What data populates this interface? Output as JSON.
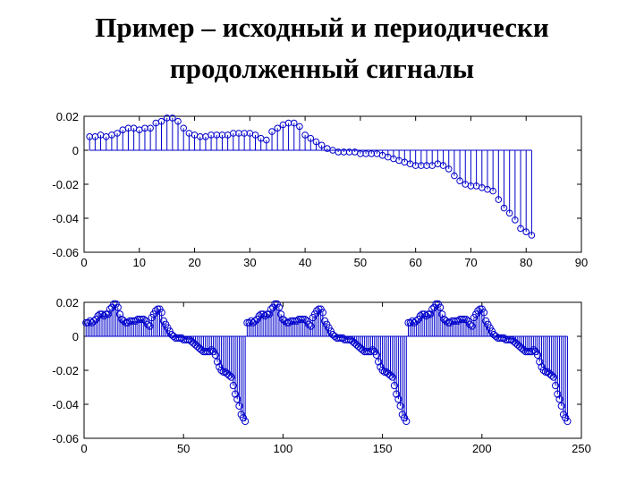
{
  "title_lines": [
    "Пример – исходный и периодически",
    "продолженный сигналы"
  ],
  "colors": {
    "stem": "#0000cc",
    "axis": "#000000",
    "background": "#ffffff"
  },
  "chart_data": [
    {
      "type": "stem",
      "xlim": [
        0,
        90
      ],
      "ylim": [
        -0.06,
        0.02
      ],
      "xticks": [
        0,
        10,
        20,
        30,
        40,
        50,
        60,
        70,
        80,
        90
      ],
      "yticks": [
        0.02,
        0,
        -0.02,
        -0.04,
        -0.06
      ],
      "xtick_labels": [
        "0",
        "10",
        "20",
        "30",
        "40",
        "50",
        "60",
        "70",
        "80",
        "90"
      ],
      "ytick_labels": [
        "0.02",
        "0",
        "-0.02",
        "-0.04",
        "-0.06"
      ],
      "x": [
        1,
        2,
        3,
        4,
        5,
        6,
        7,
        8,
        9,
        10,
        11,
        12,
        13,
        14,
        15,
        16,
        17,
        18,
        19,
        20,
        21,
        22,
        23,
        24,
        25,
        26,
        27,
        28,
        29,
        30,
        31,
        32,
        33,
        34,
        35,
        36,
        37,
        38,
        39,
        40,
        41,
        42,
        43,
        44,
        45,
        46,
        47,
        48,
        49,
        50,
        51,
        52,
        53,
        54,
        55,
        56,
        57,
        58,
        59,
        60,
        61,
        62,
        63,
        64,
        65,
        66,
        67,
        68,
        69,
        70,
        71,
        72,
        73,
        74,
        75,
        76,
        77,
        78,
        79,
        80,
        81
      ],
      "y": [
        0.008,
        0.008,
        0.009,
        0.008,
        0.009,
        0.01,
        0.012,
        0.013,
        0.013,
        0.012,
        0.013,
        0.013,
        0.016,
        0.017,
        0.019,
        0.019,
        0.017,
        0.013,
        0.01,
        0.009,
        0.008,
        0.008,
        0.009,
        0.009,
        0.009,
        0.009,
        0.01,
        0.01,
        0.01,
        0.01,
        0.009,
        0.007,
        0.006,
        0.011,
        0.013,
        0.015,
        0.016,
        0.016,
        0.014,
        0.009,
        0.007,
        0.005,
        0.003,
        0.001,
        0.0,
        -0.001,
        -0.001,
        -0.001,
        -0.001,
        -0.002,
        -0.002,
        -0.002,
        -0.002,
        -0.003,
        -0.004,
        -0.005,
        -0.006,
        -0.007,
        -0.008,
        -0.009,
        -0.009,
        -0.009,
        -0.009,
        -0.008,
        -0.009,
        -0.011,
        -0.015,
        -0.018,
        -0.02,
        -0.021,
        -0.021,
        -0.022,
        -0.023,
        -0.024,
        -0.029,
        -0.034,
        -0.037,
        -0.041,
        -0.046,
        -0.048,
        -0.05
      ]
    },
    {
      "type": "stem",
      "xlim": [
        0,
        250
      ],
      "ylim": [
        -0.06,
        0.02
      ],
      "xticks": [
        0,
        50,
        100,
        150,
        200,
        250
      ],
      "yticks": [
        0.02,
        0,
        -0.02,
        -0.04,
        -0.06
      ],
      "xtick_labels": [
        "0",
        "50",
        "100",
        "150",
        "200",
        "250"
      ],
      "ytick_labels": [
        "0.02",
        "0",
        "-0.02",
        "-0.04",
        "-0.06"
      ],
      "period": 81,
      "periods": 3
    }
  ]
}
